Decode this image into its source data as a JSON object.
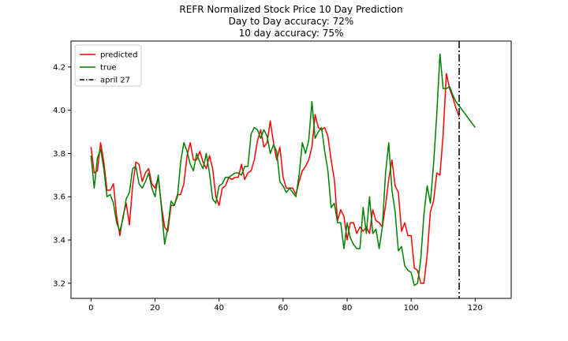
{
  "chart_data": {
    "type": "line",
    "title_lines": [
      "REFR Normalized Stock Price 10 Day Prediction",
      "Day to Day accuracy: 72%",
      "10 day accuracy: 75%"
    ],
    "xlabel": "",
    "ylabel": "",
    "xlim": [
      -6.25,
      131.25
    ],
    "ylim": [
      3.13,
      4.32
    ],
    "xticks": [
      0,
      20,
      40,
      60,
      80,
      100,
      120
    ],
    "yticks": [
      3.2,
      3.4,
      3.6,
      3.8,
      4.0,
      4.2
    ],
    "ytick_labels": [
      "3.2",
      "3.4",
      "3.6",
      "3.8",
      "4.0",
      "4.2"
    ],
    "grid": false,
    "legend_position": "top-left",
    "vline": {
      "label": "april 27",
      "x": 115,
      "color": "#000000",
      "style": "dashdot"
    },
    "series": [
      {
        "name": "predicted",
        "color": "#ff0000",
        "x_start": 0,
        "values": [
          3.83,
          3.71,
          3.72,
          3.85,
          3.76,
          3.63,
          3.63,
          3.66,
          3.51,
          3.42,
          3.51,
          3.57,
          3.47,
          3.65,
          3.76,
          3.75,
          3.67,
          3.71,
          3.73,
          3.66,
          3.64,
          3.69,
          3.56,
          3.46,
          3.44,
          3.56,
          3.56,
          3.61,
          3.61,
          3.66,
          3.79,
          3.85,
          3.77,
          3.77,
          3.81,
          3.76,
          3.73,
          3.79,
          3.73,
          3.6,
          3.56,
          3.64,
          3.65,
          3.69,
          3.68,
          3.69,
          3.69,
          3.75,
          3.68,
          3.71,
          3.72,
          3.77,
          3.86,
          3.91,
          3.83,
          3.85,
          3.95,
          3.85,
          3.77,
          3.83,
          3.69,
          3.64,
          3.64,
          3.64,
          3.61,
          3.67,
          3.72,
          3.74,
          3.77,
          3.83,
          3.98,
          3.92,
          3.91,
          3.92,
          3.88,
          3.77,
          3.68,
          3.49,
          3.54,
          3.51,
          3.4,
          3.48,
          3.48,
          3.43,
          3.46,
          3.44,
          3.46,
          3.43,
          3.54,
          3.49,
          3.48,
          3.46,
          3.56,
          3.68,
          3.77,
          3.65,
          3.62,
          3.44,
          3.48,
          3.42,
          3.42,
          3.27,
          3.26,
          3.2,
          3.2,
          3.33,
          3.53,
          3.58,
          3.71,
          3.7,
          3.89,
          4.17,
          4.1,
          4.06,
          4.01,
          3.97
        ]
      },
      {
        "name": "true",
        "color": "#008000",
        "x_start": 0,
        "values": [
          3.79,
          3.64,
          3.78,
          3.82,
          3.73,
          3.6,
          3.61,
          3.57,
          3.48,
          3.44,
          3.5,
          3.59,
          3.62,
          3.73,
          3.74,
          3.66,
          3.64,
          3.67,
          3.71,
          3.64,
          3.6,
          3.7,
          3.55,
          3.38,
          3.46,
          3.58,
          3.56,
          3.6,
          3.76,
          3.85,
          3.81,
          3.75,
          3.72,
          3.8,
          3.76,
          3.73,
          3.8,
          3.71,
          3.59,
          3.57,
          3.65,
          3.66,
          3.69,
          3.69,
          3.7,
          3.71,
          3.71,
          3.7,
          3.74,
          3.74,
          3.89,
          3.92,
          3.91,
          3.87,
          3.91,
          3.88,
          3.8,
          3.84,
          3.81,
          3.67,
          3.65,
          3.62,
          3.64,
          3.62,
          3.6,
          3.7,
          3.85,
          3.8,
          3.86,
          4.04,
          3.87,
          3.9,
          3.92,
          3.81,
          3.72,
          3.55,
          3.57,
          3.48,
          3.48,
          3.36,
          3.48,
          3.41,
          3.38,
          3.36,
          3.36,
          3.55,
          3.43,
          3.6,
          3.43,
          3.45,
          3.36,
          3.46,
          3.71,
          3.85,
          3.63,
          3.53,
          3.35,
          3.37,
          3.28,
          3.26,
          3.25,
          3.19,
          3.2,
          3.31,
          3.52,
          3.65,
          3.57,
          3.75,
          3.98,
          4.26,
          4.1,
          4.1,
          4.11,
          4.07,
          4.04,
          4.02,
          4.0,
          3.98,
          3.96,
          3.94,
          3.92
        ]
      }
    ]
  }
}
